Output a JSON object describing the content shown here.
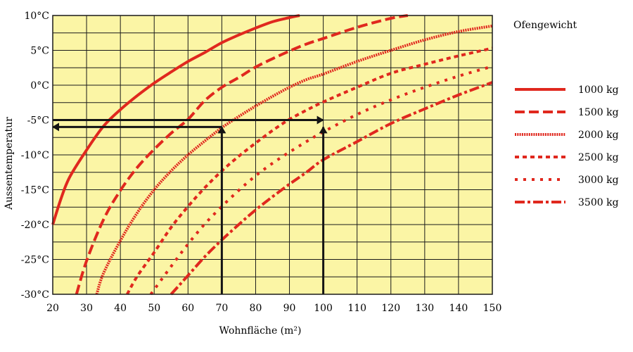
{
  "chart_data": {
    "type": "line",
    "xlabel": "Wohnfläche (m²)",
    "ylabel": "Aussentemperatur",
    "xlim": [
      20,
      150
    ],
    "ylim": [
      -30,
      10
    ],
    "x_ticks": [
      20,
      30,
      40,
      50,
      60,
      70,
      80,
      90,
      100,
      110,
      120,
      130,
      140,
      150
    ],
    "x_tick_labels": [
      "20",
      "30",
      "40",
      "50",
      "60",
      "70",
      "80",
      "90",
      "100",
      "110",
      "120",
      "130",
      "140",
      "150"
    ],
    "y_ticks": [
      10,
      5,
      0,
      -5,
      -10,
      -15,
      -20,
      -25,
      -30
    ],
    "y_tick_labels": [
      "10°C",
      "5°C",
      "0°C",
      "-5°C",
      "-10°C",
      "-15°C",
      "-20°C",
      "-25°C",
      "-30°C"
    ],
    "grid": true,
    "legend": {
      "title": "Ofengewicht",
      "position": "right"
    },
    "colors": {
      "plot_bg": "#fbf5a5",
      "grid": "#1a1a1a",
      "series": "#e0281e",
      "arrow": "#141414"
    },
    "series": [
      {
        "name": "1000 kg",
        "dash": "solid",
        "points": [
          [
            20,
            -20
          ],
          [
            22.5,
            -16.2
          ],
          [
            25,
            -13.2
          ],
          [
            30,
            -9.3
          ],
          [
            35,
            -5.9
          ],
          [
            40,
            -3.5
          ],
          [
            45,
            -1.5
          ],
          [
            50,
            0.3
          ],
          [
            55,
            1.9
          ],
          [
            60,
            3.4
          ],
          [
            65,
            4.7
          ],
          [
            70,
            6.1
          ],
          [
            75,
            7.2
          ],
          [
            80,
            8.2
          ],
          [
            85,
            9.1
          ],
          [
            90,
            9.7
          ],
          [
            93,
            10
          ]
        ]
      },
      {
        "name": "1500 kg",
        "dash": "dash",
        "points": [
          [
            27,
            -30
          ],
          [
            30,
            -25.2
          ],
          [
            35,
            -19.3
          ],
          [
            40,
            -15.1
          ],
          [
            45,
            -11.8
          ],
          [
            50,
            -9.2
          ],
          [
            55,
            -6.9
          ],
          [
            60,
            -4.9
          ],
          [
            65,
            -2.2
          ],
          [
            70,
            -0.3
          ],
          [
            75,
            1.1
          ],
          [
            80,
            2.6
          ],
          [
            85,
            3.8
          ],
          [
            90,
            4.9
          ],
          [
            95,
            5.9
          ],
          [
            100,
            6.7
          ],
          [
            110,
            8.3
          ],
          [
            120,
            9.6
          ],
          [
            125,
            10
          ]
        ]
      },
      {
        "name": "2000 kg",
        "dash": "dense",
        "points": [
          [
            33,
            -30
          ],
          [
            35,
            -27
          ],
          [
            40,
            -22.3
          ],
          [
            45,
            -18.3
          ],
          [
            50,
            -15
          ],
          [
            55,
            -12.3
          ],
          [
            60,
            -10
          ],
          [
            65,
            -8
          ],
          [
            70,
            -6.1
          ],
          [
            75,
            -4.5
          ],
          [
            80,
            -3
          ],
          [
            85,
            -1.6
          ],
          [
            90,
            -0.3
          ],
          [
            95,
            0.8
          ],
          [
            100,
            1.6
          ],
          [
            110,
            3.4
          ],
          [
            120,
            5
          ],
          [
            130,
            6.5
          ],
          [
            140,
            7.7
          ],
          [
            150,
            8.5
          ]
        ]
      },
      {
        "name": "2500 kg",
        "dash": "dot",
        "points": [
          [
            42,
            -30
          ],
          [
            45,
            -27.4
          ],
          [
            50,
            -24
          ],
          [
            55,
            -20.4
          ],
          [
            60,
            -17.4
          ],
          [
            65,
            -14.7
          ],
          [
            70,
            -12.3
          ],
          [
            75,
            -10.2
          ],
          [
            80,
            -8.3
          ],
          [
            85,
            -6.5
          ],
          [
            90,
            -4.9
          ],
          [
            95,
            -3.6
          ],
          [
            100,
            -2.4
          ],
          [
            110,
            -0.3
          ],
          [
            120,
            1.7
          ],
          [
            130,
            3
          ],
          [
            140,
            4.2
          ],
          [
            150,
            5.3
          ]
        ]
      },
      {
        "name": "3000 kg",
        "dash": "dotsparse",
        "points": [
          [
            49,
            -30
          ],
          [
            55,
            -26
          ],
          [
            60,
            -22.8
          ],
          [
            65,
            -19.9
          ],
          [
            70,
            -17.4
          ],
          [
            75,
            -15.1
          ],
          [
            80,
            -13
          ],
          [
            85,
            -11.2
          ],
          [
            90,
            -9.6
          ],
          [
            95,
            -8.1
          ],
          [
            100,
            -6.7
          ],
          [
            110,
            -4.2
          ],
          [
            120,
            -2.1
          ],
          [
            130,
            -0.3
          ],
          [
            140,
            1.3
          ],
          [
            150,
            2.7
          ]
        ]
      },
      {
        "name": "3500 kg",
        "dash": "dashdot",
        "points": [
          [
            55,
            -30
          ],
          [
            60,
            -27.3
          ],
          [
            65,
            -24.6
          ],
          [
            70,
            -22.2
          ],
          [
            75,
            -20
          ],
          [
            80,
            -17.9
          ],
          [
            85,
            -16
          ],
          [
            90,
            -14.2
          ],
          [
            95,
            -12.5
          ],
          [
            100,
            -10.7
          ],
          [
            110,
            -8.1
          ],
          [
            120,
            -5.5
          ],
          [
            130,
            -3.4
          ],
          [
            140,
            -1.4
          ],
          [
            150,
            0.4
          ]
        ]
      }
    ],
    "annotations": [
      {
        "type": "arrow",
        "from": [
          70,
          -30
        ],
        "to": [
          70,
          -6
        ]
      },
      {
        "type": "arrow",
        "from": [
          70,
          -6
        ],
        "to": [
          20,
          -6
        ]
      },
      {
        "type": "arrow",
        "from": [
          100,
          -30
        ],
        "to": [
          100,
          -6
        ]
      },
      {
        "type": "arrow",
        "from": [
          20,
          -5
        ],
        "to": [
          100,
          -5
        ]
      }
    ]
  }
}
